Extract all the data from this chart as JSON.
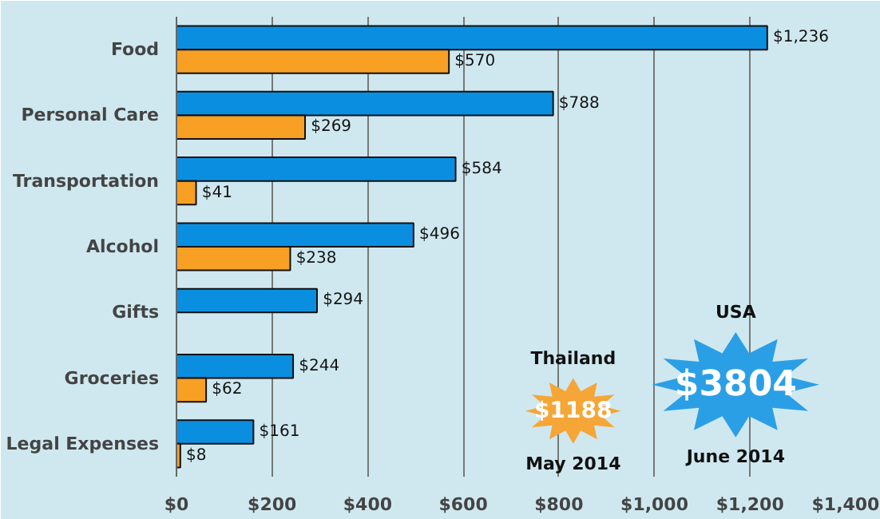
{
  "chart_data": {
    "type": "bar",
    "orientation": "horizontal",
    "categories": [
      "Food",
      "Personal Care",
      "Transportation",
      "Alcohol",
      "Gifts",
      "Groceries",
      "Legal Expenses"
    ],
    "series": [
      {
        "color": "#0a8fe0",
        "values": [
          1236,
          788,
          584,
          496,
          294,
          244,
          161
        ],
        "value_labels": [
          "$1,236",
          "$788",
          "$584",
          "$496",
          "$294",
          "$244",
          "$161"
        ]
      },
      {
        "color": "#f7a024",
        "values": [
          570,
          269,
          41,
          238,
          null,
          62,
          8
        ],
        "value_labels": [
          "$570",
          "$269",
          "$41",
          "$238",
          null,
          "$62",
          "$8"
        ]
      }
    ],
    "xlim": [
      0,
      1400
    ],
    "xticks": [
      {
        "value": 0,
        "label": "$0"
      },
      {
        "value": 200,
        "label": "$200"
      },
      {
        "value": 400,
        "label": "$400"
      },
      {
        "value": 600,
        "label": "$600"
      },
      {
        "value": 800,
        "label": "$800"
      },
      {
        "value": 1000,
        "label": "$1,000"
      },
      {
        "value": 1200,
        "label": "$1,200"
      },
      {
        "value": 1400,
        "label": "$1,400"
      }
    ],
    "grid": "x",
    "annotations": [
      "Thailand",
      "$1188",
      "May 2014",
      "USA",
      "$3804",
      "June 2014"
    ]
  }
}
